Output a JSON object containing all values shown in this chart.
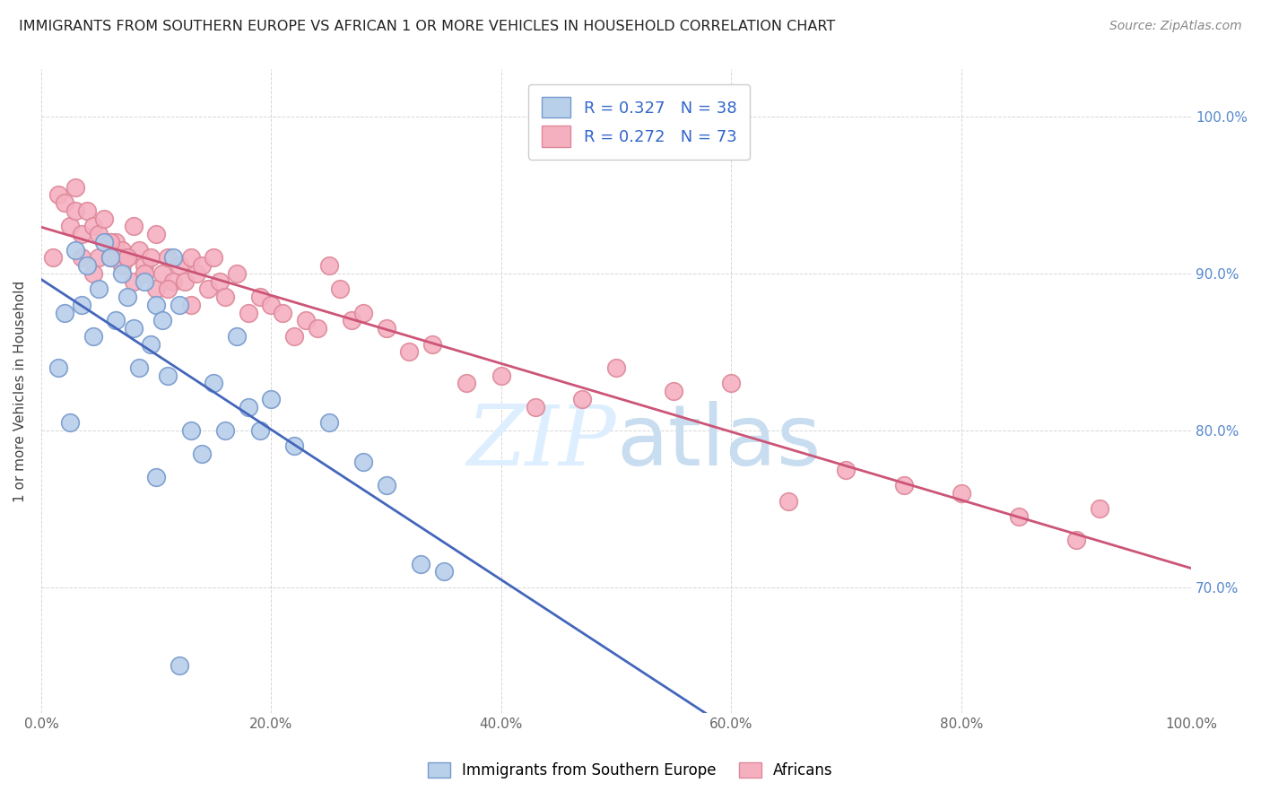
{
  "title": "IMMIGRANTS FROM SOUTHERN EUROPE VS AFRICAN 1 OR MORE VEHICLES IN HOUSEHOLD CORRELATION CHART",
  "source": "Source: ZipAtlas.com",
  "ylabel": "1 or more Vehicles in Household",
  "yticks": [
    "70.0%",
    "80.0%",
    "90.0%",
    "100.0%"
  ],
  "ytick_values": [
    70,
    80,
    90,
    100
  ],
  "xlim": [
    0,
    100
  ],
  "ylim": [
    62,
    103
  ],
  "legend1_label": "Immigrants from Southern Europe",
  "legend2_label": "Africans",
  "R_blue": 0.327,
  "N_blue": 38,
  "R_pink": 0.272,
  "N_pink": 73,
  "color_blue": "#b8d0ea",
  "color_pink": "#f5b0c0",
  "color_blue_edge": "#7799cc",
  "color_pink_edge": "#dd8899",
  "line_blue": "#4466bb",
  "line_pink": "#cc5577",
  "watermark_color": "#ddeeff",
  "blue_x": [
    1.5,
    2.0,
    2.5,
    3.0,
    3.5,
    4.0,
    4.5,
    5.0,
    5.5,
    6.0,
    6.5,
    7.0,
    7.5,
    8.0,
    8.5,
    9.0,
    9.5,
    10.0,
    10.5,
    11.0,
    11.5,
    12.0,
    13.0,
    14.0,
    15.0,
    16.0,
    17.0,
    18.0,
    19.0,
    20.0,
    22.0,
    25.0,
    28.0,
    30.0,
    33.0,
    35.0,
    10.0,
    12.0
  ],
  "blue_y": [
    84.0,
    87.5,
    80.5,
    91.5,
    88.0,
    90.5,
    86.0,
    89.0,
    92.0,
    91.0,
    87.0,
    90.0,
    88.5,
    86.5,
    84.0,
    89.5,
    85.5,
    88.0,
    87.0,
    83.5,
    91.0,
    88.0,
    80.0,
    78.5,
    83.0,
    80.0,
    86.0,
    81.5,
    80.0,
    82.0,
    79.0,
    80.5,
    78.0,
    76.5,
    71.5,
    71.0,
    77.0,
    65.0
  ],
  "pink_x": [
    1.0,
    1.5,
    2.0,
    2.5,
    3.0,
    3.0,
    3.5,
    4.0,
    4.5,
    5.0,
    5.0,
    5.5,
    6.0,
    6.0,
    6.5,
    7.0,
    7.0,
    7.5,
    8.0,
    8.0,
    8.5,
    9.0,
    9.5,
    10.0,
    10.0,
    10.5,
    11.0,
    11.5,
    12.0,
    12.5,
    13.0,
    13.5,
    14.0,
    14.5,
    15.0,
    15.5,
    16.0,
    17.0,
    18.0,
    19.0,
    20.0,
    21.0,
    22.0,
    23.0,
    24.0,
    25.0,
    26.0,
    27.0,
    28.0,
    30.0,
    32.0,
    34.0,
    37.0,
    40.0,
    43.0,
    47.0,
    50.0,
    55.0,
    60.0,
    65.0,
    70.0,
    75.0,
    80.0,
    85.0,
    90.0,
    92.0,
    3.5,
    4.5,
    6.0,
    7.5,
    9.0,
    11.0,
    13.0
  ],
  "pink_y": [
    91.0,
    95.0,
    94.5,
    93.0,
    95.5,
    94.0,
    92.5,
    94.0,
    93.0,
    92.5,
    91.0,
    93.5,
    92.0,
    91.0,
    92.0,
    91.5,
    90.5,
    91.0,
    93.0,
    89.5,
    91.5,
    90.5,
    91.0,
    92.5,
    89.0,
    90.0,
    91.0,
    89.5,
    90.5,
    89.5,
    91.0,
    90.0,
    90.5,
    89.0,
    91.0,
    89.5,
    88.5,
    90.0,
    87.5,
    88.5,
    88.0,
    87.5,
    86.0,
    87.0,
    86.5,
    90.5,
    89.0,
    87.0,
    87.5,
    86.5,
    85.0,
    85.5,
    83.0,
    83.5,
    81.5,
    82.0,
    84.0,
    82.5,
    83.0,
    75.5,
    77.5,
    76.5,
    76.0,
    74.5,
    73.0,
    75.0,
    91.0,
    90.0,
    92.0,
    91.0,
    90.0,
    89.0,
    88.0
  ]
}
